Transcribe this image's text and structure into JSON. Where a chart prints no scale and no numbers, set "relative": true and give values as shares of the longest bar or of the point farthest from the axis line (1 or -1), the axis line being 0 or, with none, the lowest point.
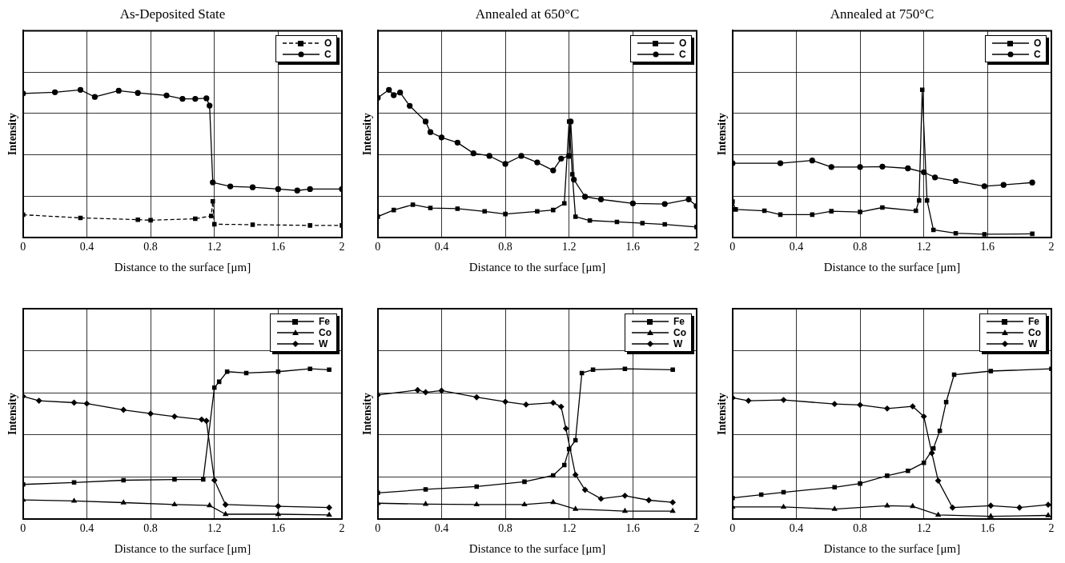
{
  "chart_data": [
    {
      "type": "line",
      "title": "As-Deposited State",
      "xlabel": "Distance to the surface [μm]",
      "ylabel": "Intensity",
      "relative": true,
      "xlim": [
        0,
        2
      ],
      "xticks": [
        0,
        0.4,
        0.8,
        1.2,
        1.6,
        2
      ],
      "grid": true,
      "legend": "top right",
      "series": [
        {
          "name": "O",
          "color": "#000000",
          "marker": "square",
          "line_style": "dashed",
          "x": [
            0,
            0.36,
            0.72,
            0.8,
            1.08,
            1.18,
            1.19,
            1.2,
            1.44,
            1.8,
            2.0
          ],
          "values": [
            0.155,
            0.134,
            0.122,
            0.118,
            0.128,
            0.147,
            0.246,
            0.091,
            0.088,
            0.083,
            0.083
          ]
        },
        {
          "name": "C",
          "color": "#000000",
          "marker": "circle",
          "x": [
            0,
            0.2,
            0.36,
            0.45,
            0.6,
            0.72,
            0.9,
            1.0,
            1.08,
            1.15,
            1.17,
            1.19,
            1.3,
            1.44,
            1.6,
            1.72,
            1.8,
            2.0
          ],
          "values": [
            0.976,
            0.984,
            1,
            0.952,
            0.994,
            0.979,
            0.962,
            0.939,
            0.939,
            0.943,
            0.893,
            0.374,
            0.347,
            0.341,
            0.329,
            0.319,
            0.329,
            0.329
          ]
        }
      ]
    },
    {
      "type": "line",
      "title": "Annealed at 650°C",
      "xlabel": "Distance to the surface [μm]",
      "ylabel": "Intensity",
      "relative": true,
      "xlim": [
        0,
        2
      ],
      "xticks": [
        0,
        0.4,
        0.8,
        1.2,
        1.6,
        2
      ],
      "grid": true,
      "legend": "top right",
      "series": [
        {
          "name": "O",
          "color": "#000000",
          "marker": "square",
          "x": [
            0,
            0.1,
            0.22,
            0.33,
            0.5,
            0.67,
            0.8,
            1.0,
            1.1,
            1.17,
            1.2,
            1.22,
            1.24,
            1.33,
            1.5,
            1.66,
            1.8,
            2.0
          ],
          "values": [
            0.142,
            0.187,
            0.223,
            0.201,
            0.196,
            0.178,
            0.16,
            0.178,
            0.187,
            0.232,
            0.786,
            0.429,
            0.142,
            0.116,
            0.107,
            0.098,
            0.09,
            0.072
          ]
        },
        {
          "name": "C",
          "color": "#000000",
          "marker": "circle",
          "x": [
            0,
            0.07,
            0.1,
            0.14,
            0.2,
            0.3,
            0.33,
            0.4,
            0.5,
            0.6,
            0.7,
            0.8,
            0.9,
            1.0,
            1.1,
            1.15,
            1.2,
            1.21,
            1.23,
            1.3,
            1.4,
            1.6,
            1.8,
            1.95,
            2.0
          ],
          "values": [
            0.946,
            1,
            0.964,
            0.982,
            0.892,
            0.786,
            0.714,
            0.678,
            0.643,
            0.571,
            0.553,
            0.499,
            0.553,
            0.509,
            0.455,
            0.535,
            0.553,
            0.786,
            0.393,
            0.277,
            0.259,
            0.232,
            0.228,
            0.259,
            0.214
          ]
        }
      ]
    },
    {
      "type": "line",
      "title": "Annealed at 750°C",
      "xlabel": "Distance to the surface [μm]",
      "ylabel": "Intensity",
      "relative": true,
      "xlim": [
        0,
        2
      ],
      "xticks": [
        0,
        0.4,
        0.8,
        1.2,
        1.6,
        2
      ],
      "grid": true,
      "legend": "top right",
      "series": [
        {
          "name": "O",
          "color": "#000000",
          "marker": "square",
          "x": [
            0,
            0.02,
            0.2,
            0.3,
            0.5,
            0.62,
            0.8,
            0.94,
            1.15,
            1.17,
            1.19,
            1.22,
            1.26,
            1.4,
            1.58,
            1.88
          ],
          "values": [
            0.244,
            0.191,
            0.182,
            0.156,
            0.156,
            0.179,
            0.174,
            0.204,
            0.182,
            0.252,
            1,
            0.252,
            0.053,
            0.03,
            0.023,
            0.026
          ]
        },
        {
          "name": "C",
          "color": "#000000",
          "marker": "circle",
          "x": [
            0,
            0.3,
            0.5,
            0.62,
            0.8,
            0.94,
            1.1,
            1.2,
            1.27,
            1.4,
            1.58,
            1.7,
            1.88
          ],
          "values": [
            0.504,
            0.504,
            0.522,
            0.478,
            0.478,
            0.481,
            0.469,
            0.443,
            0.408,
            0.383,
            0.348,
            0.357,
            0.373
          ]
        }
      ]
    },
    {
      "type": "line",
      "xlabel": "Distance to the surface [μm]",
      "ylabel": "Intensity",
      "relative": true,
      "xlim": [
        0,
        2
      ],
      "xticks": [
        0,
        0.4,
        0.8,
        1.2,
        1.6,
        2
      ],
      "grid": true,
      "legend": "top right",
      "series": [
        {
          "name": "Fe",
          "color": "#000000",
          "marker": "square",
          "x": [
            0,
            0.32,
            0.63,
            0.95,
            1.13,
            1.2,
            1.23,
            1.28,
            1.4,
            1.6,
            1.8,
            1.92
          ],
          "values": [
            0.231,
            0.244,
            0.259,
            0.264,
            0.264,
            0.875,
            0.914,
            0.981,
            0.972,
            0.981,
            1,
            0.994
          ]
        },
        {
          "name": "Co",
          "color": "#000000",
          "marker": "triangle",
          "x": [
            0,
            0.32,
            0.63,
            0.95,
            1.17,
            1.27,
            1.6,
            1.92
          ],
          "values": [
            0.128,
            0.121,
            0.11,
            0.097,
            0.091,
            0.033,
            0.033,
            0.028
          ]
        },
        {
          "name": "W",
          "color": "#000000",
          "marker": "diamond",
          "x": [
            0,
            0.1,
            0.32,
            0.4,
            0.63,
            0.8,
            0.95,
            1.12,
            1.15,
            1.2,
            1.27,
            1.6,
            1.92
          ],
          "values": [
            0.817,
            0.788,
            0.775,
            0.769,
            0.727,
            0.702,
            0.683,
            0.663,
            0.654,
            0.259,
            0.097,
            0.086,
            0.077
          ]
        }
      ]
    },
    {
      "type": "line",
      "xlabel": "Distance to the surface [μm]",
      "ylabel": "Intensity",
      "relative": true,
      "xlim": [
        0,
        2
      ],
      "xticks": [
        0,
        0.4,
        0.8,
        1.2,
        1.6,
        2
      ],
      "grid": true,
      "legend": "top right",
      "series": [
        {
          "name": "Fe",
          "color": "#000000",
          "marker": "square",
          "x": [
            0,
            0.3,
            0.62,
            0.92,
            1.1,
            1.17,
            1.2,
            1.24,
            1.28,
            1.35,
            1.55,
            1.85
          ],
          "values": [
            0.175,
            0.198,
            0.217,
            0.249,
            0.291,
            0.36,
            0.466,
            0.525,
            0.972,
            0.994,
            1,
            0.994
          ]
        },
        {
          "name": "Co",
          "color": "#000000",
          "marker": "triangle",
          "x": [
            0,
            0.3,
            0.62,
            0.92,
            1.1,
            1.24,
            1.55,
            1.85
          ],
          "values": [
            0.106,
            0.1,
            0.097,
            0.097,
            0.112,
            0.067,
            0.054,
            0.054
          ]
        },
        {
          "name": "W",
          "color": "#000000",
          "marker": "diamond",
          "x": [
            0,
            0.25,
            0.3,
            0.4,
            0.62,
            0.8,
            0.93,
            1.1,
            1.15,
            1.18,
            1.24,
            1.3,
            1.4,
            1.55,
            1.7,
            1.85
          ],
          "values": [
            0.826,
            0.859,
            0.844,
            0.855,
            0.811,
            0.781,
            0.762,
            0.774,
            0.748,
            0.603,
            0.295,
            0.195,
            0.136,
            0.156,
            0.126,
            0.112
          ]
        }
      ]
    },
    {
      "type": "line",
      "xlabel": "Distance to the surface [μm]",
      "ylabel": "Intensity",
      "relative": true,
      "xlim": [
        0,
        2
      ],
      "xticks": [
        0,
        0.4,
        0.8,
        1.2,
        1.6,
        2
      ],
      "grid": true,
      "legend": "top right",
      "series": [
        {
          "name": "Fe",
          "color": "#000000",
          "marker": "square",
          "x": [
            0,
            0.18,
            0.32,
            0.64,
            0.8,
            0.97,
            1.1,
            1.2,
            1.26,
            1.3,
            1.34,
            1.39,
            1.62,
            2.0
          ],
          "values": [
            0.141,
            0.163,
            0.179,
            0.212,
            0.237,
            0.289,
            0.321,
            0.375,
            0.471,
            0.587,
            0.779,
            0.961,
            0.985,
            1
          ]
        },
        {
          "name": "Co",
          "color": "#000000",
          "marker": "triangle",
          "x": [
            0,
            0.32,
            0.64,
            0.97,
            1.13,
            1.29,
            1.62,
            1.98
          ],
          "values": [
            0.081,
            0.081,
            0.067,
            0.09,
            0.086,
            0.028,
            0.019,
            0.025
          ]
        },
        {
          "name": "W",
          "color": "#000000",
          "marker": "diamond",
          "x": [
            0,
            0.1,
            0.32,
            0.64,
            0.8,
            0.97,
            1.13,
            1.2,
            1.25,
            1.29,
            1.38,
            1.62,
            1.8,
            1.98
          ],
          "values": [
            0.807,
            0.788,
            0.793,
            0.766,
            0.76,
            0.736,
            0.75,
            0.683,
            0.44,
            0.256,
            0.077,
            0.09,
            0.077,
            0.096
          ]
        }
      ]
    }
  ]
}
